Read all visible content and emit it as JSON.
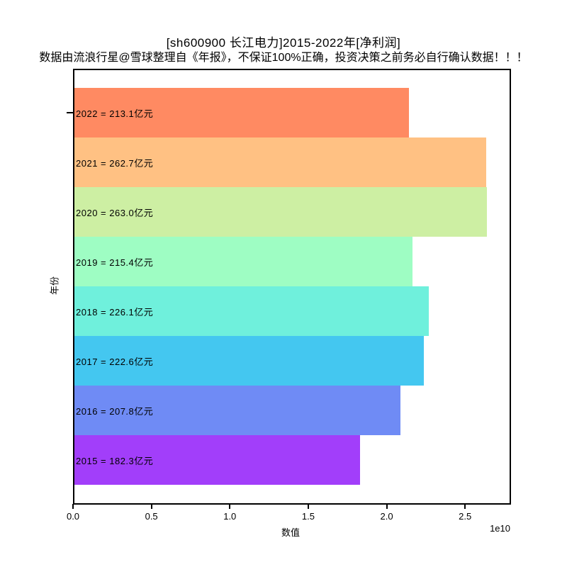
{
  "figure": {
    "title": "[sh600900 长江电力]2015-2022年[净利润]",
    "subtitle": "数据由流浪行星@雪球整理自《年报》，不保证100%正确，投资决策之前务必自行确认数据！！！"
  },
  "chart_data": {
    "type": "bar",
    "orientation": "horizontal",
    "title": "[sh600900 长江电力]2015-2022年[净利润]",
    "xlabel": "数值",
    "ylabel": "年份",
    "axis_offset_label": "1e10",
    "grid": false,
    "legend": null,
    "xlim": [
      0,
      27750000000
    ],
    "xtick_values": [
      0,
      5000000000,
      10000000000,
      15000000000,
      20000000000,
      25000000000
    ],
    "xtick_labels": [
      "0.0",
      "0.5",
      "1.0",
      "1.5",
      "2.0",
      "2.5"
    ],
    "categories": [
      "2022",
      "2021",
      "2020",
      "2019",
      "2018",
      "2017",
      "2016",
      "2015"
    ],
    "values": [
      21310000000,
      26270000000,
      26300000000,
      21540000000,
      22610000000,
      22260000000,
      20780000000,
      18230000000
    ],
    "values_yi_yuan": [
      213.1,
      262.7,
      263.0,
      215.4,
      226.1,
      222.6,
      207.8,
      182.3
    ],
    "unit": "亿元",
    "bar_labels": [
      "2022 = 213.1亿元",
      "2021 = 262.7亿元",
      "2020 = 263.0亿元",
      "2019 = 215.4亿元",
      "2018 = 226.1亿元",
      "2017 = 222.6亿元",
      "2016 = 207.8亿元",
      "2015 = 182.3亿元"
    ],
    "bar_colors": [
      "#FF8A62",
      "#FFC183",
      "#CDEFA3",
      "#9EFDC3",
      "#6FF0DC",
      "#44C7F0",
      "#6F8BF5",
      "#A23EFA"
    ]
  }
}
